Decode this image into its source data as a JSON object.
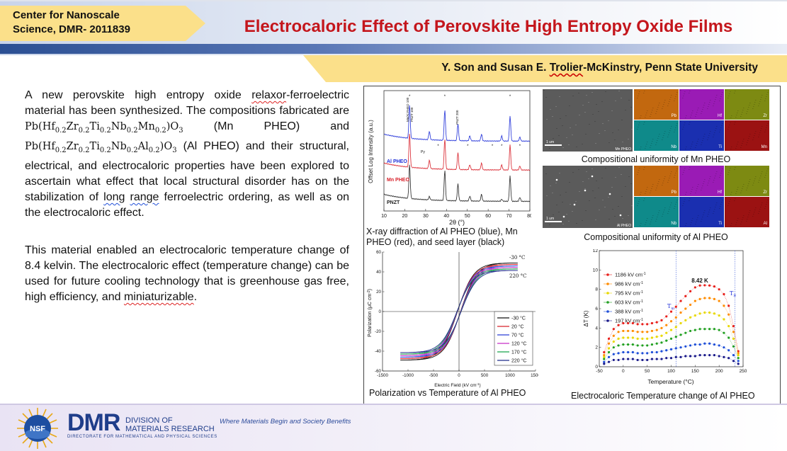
{
  "header": {
    "center_line1": "Center for Nanoscale",
    "center_line2": "Science, DMR- 2011839",
    "title": "Electrocaloric Effect of Perovskite High Entropy Oxide Films",
    "authors_prefix": "Y. Son and Susan E. ",
    "authors_underlined": "Trolier",
    "authors_suffix": "-McKinstry, Penn State University"
  },
  "body": {
    "p1_a": "A new perovskite high entropy oxide ",
    "p1_relaxor": "relaxor",
    "p1_b": "-ferroelectric material has been synthesized. The compositions fabricated are ",
    "p1_c": " (Mn PHEO) and ",
    "p1_d": " (Al PHEO) and their structural, electrical, and electrocaloric properties have been explored to ascertain what effect that local structural disorder has on the stabilization of ",
    "p1_long": "long",
    "p1_space": " ",
    "p1_range": "range",
    "p1_e": " ferroelectric ordering, as well as on the electrocaloric effect.",
    "p2_a": "This material enabled an electrocaloric temperature change of 8.4 kelvin. The electrocaloric effect (temperature change) can be used for future cooling technology that is greenhouse gas free, high efficiency, and ",
    "p2_mini": "miniaturizable",
    "p2_b": ".",
    "formula_mn": {
      "pb": "Pb(Hf",
      "s1": "0.2",
      "zr": "Zr",
      "s2": "0.2",
      "ti": "Ti",
      "s3": "0.2",
      "nb": "Nb",
      "s4": "0.2",
      "m": "Mn",
      "s5": "0.2",
      "o": ")O",
      "s6": "3"
    },
    "formula_al": {
      "pb": "Pb(Hf",
      "s1": "0.2",
      "zr": "Zr",
      "s2": "0.2",
      "ti": "Ti",
      "s3": "0.2",
      "nb": "Nb",
      "s4": "0.2",
      "m": "Al",
      "s5": "0.2",
      "o": ")O",
      "s6": "3"
    }
  },
  "captions": {
    "xrd": "X-ray diffraction of Al PHEO (blue), Mn PHEO (red), and seed layer (black)",
    "mn_map": "Compositional uniformity of Mn PHEO",
    "al_map": "Compositional uniformity of Al PHEO",
    "pe": "Polarization vs Temperature of Al PHEO",
    "ec": "Electrocaloric Temperature change of Al PHEO"
  },
  "em_maps": {
    "scale": "1 um",
    "mn_label": "Mn PHEO",
    "al_label": "Al PHEO",
    "elements_mn": [
      "Pb",
      "Hf",
      "Zr",
      "Nb",
      "Ti",
      "Mn"
    ],
    "elements_al": [
      "Pb",
      "Hf",
      "Zr",
      "Nb",
      "Ti",
      "Al"
    ],
    "colors": [
      "#c2680f",
      "#9a1bb5",
      "#7d8a12",
      "#0f8a8a",
      "#1a2fb0",
      "#9b1212"
    ]
  },
  "footer": {
    "nsf": "NSF",
    "dmr": "DMR",
    "dmr_line1": "DIVISION OF",
    "dmr_line2": "MATERIALS RESEARCH",
    "dmr_sub": "DIRECTORATE FOR MATHEMATICAL AND PHYSICAL SCIENCES",
    "tagline": "Where Materials Begin and Society Benefits"
  },
  "chart_data": [
    {
      "type": "line",
      "ylabel": "Offset Log Intensity (a.u.)",
      "xlabel": "2θ (°)",
      "xlim": [
        10,
        80
      ],
      "xticks": [
        10,
        20,
        30,
        40,
        50,
        60,
        70,
        80
      ],
      "series": [
        {
          "name": "Al PHEO",
          "color": "#1f2fd8",
          "offset": 0.58
        },
        {
          "name": "Mn PHEO",
          "color": "#d8202a",
          "offset": 0.34
        },
        {
          "name": "PNZT",
          "color": "#222222",
          "offset": 0.08
        }
      ],
      "peaks": [
        22.3,
        31.8,
        39.2,
        45.5,
        51.2,
        56.8,
        66.5,
        70.5,
        75.2
      ],
      "annotations": [
        "Mn/Al PHEO 100",
        "PNZT 100",
        "PNZT 200",
        "Py",
        "*"
      ]
    },
    {
      "type": "line",
      "xlabel": "Electric Field (kV cm",
      "xlabel_sup": "-1",
      "xlabel_end": ")",
      "ylabel": "Polarization (μC cm",
      "ylabel_sup": "-2",
      "ylabel_end": ")",
      "xlim": [
        -1500,
        1500
      ],
      "ylim": [
        -60,
        60
      ],
      "xticks": [
        -1500,
        -1000,
        -500,
        0,
        500,
        1000,
        1500
      ],
      "yticks": [
        -60,
        -40,
        -20,
        0,
        20,
        40,
        60
      ],
      "annot_top": "-30 °C",
      "annot_bottom": "220 °C",
      "series": [
        {
          "name": "-30 °C",
          "color": "#111111",
          "pmax": 49
        },
        {
          "name": "20 °C",
          "color": "#d8202a",
          "pmax": 47.5
        },
        {
          "name": "70 °C",
          "color": "#2a3fd8",
          "pmax": 46
        },
        {
          "name": "120 °C",
          "color": "#c82fc8",
          "pmax": 44.5
        },
        {
          "name": "170 °C",
          "color": "#17a34a",
          "pmax": 43
        },
        {
          "name": "220 °C",
          "color": "#1d2a8a",
          "pmax": 41.5
        }
      ]
    },
    {
      "type": "scatter",
      "xlabel": "Temperature (°C)",
      "ylabel": "ΔT (K)",
      "xlim": [
        -50,
        250
      ],
      "ylim": [
        0,
        12
      ],
      "xticks": [
        -50,
        0,
        50,
        100,
        150,
        200,
        250
      ],
      "yticks": [
        0,
        2,
        4,
        6,
        8,
        10,
        12
      ],
      "peak_label": "8.42 K",
      "tm": "T",
      "tm_sub": "m",
      "tb": "T",
      "tb_sub": "B",
      "unit": "kV cm",
      "unit_sup": "-1",
      "x": [
        -40,
        -30,
        -20,
        -10,
        0,
        10,
        20,
        30,
        40,
        50,
        60,
        70,
        80,
        90,
        100,
        110,
        120,
        130,
        140,
        150,
        160,
        170,
        180,
        190,
        200,
        210,
        220,
        230,
        240
      ],
      "series": [
        {
          "field": "1186",
          "color": "#e8201c",
          "values": [
            1.5,
            2.9,
            3.9,
            4.3,
            4.5,
            4.5,
            4.5,
            4.4,
            4.4,
            4.4,
            4.5,
            4.6,
            4.8,
            5.2,
            5.7,
            6.2,
            6.8,
            7.3,
            7.8,
            8.2,
            8.4,
            8.42,
            8.4,
            8.3,
            8.0,
            7.5,
            6.3,
            4.2,
            1.6
          ]
        },
        {
          "field": "986",
          "color": "#ff8c00",
          "values": [
            1.2,
            2.4,
            3.2,
            3.6,
            3.7,
            3.7,
            3.7,
            3.6,
            3.6,
            3.6,
            3.7,
            3.8,
            4.0,
            4.3,
            4.7,
            5.1,
            5.6,
            6.0,
            6.4,
            6.8,
            7.0,
            7.1,
            7.1,
            7.0,
            6.8,
            6.3,
            5.4,
            3.6,
            1.4
          ]
        },
        {
          "field": "795",
          "color": "#e8d800",
          "values": [
            1.0,
            1.9,
            2.6,
            2.9,
            3.0,
            3.0,
            3.0,
            2.9,
            2.9,
            2.9,
            3.0,
            3.1,
            3.2,
            3.5,
            3.8,
            4.1,
            4.5,
            4.8,
            5.1,
            5.3,
            5.5,
            5.6,
            5.6,
            5.5,
            5.3,
            4.9,
            4.2,
            2.9,
            1.2
          ]
        },
        {
          "field": "603",
          "color": "#22a022",
          "values": [
            0.8,
            1.5,
            2.0,
            2.2,
            2.3,
            2.3,
            2.3,
            2.2,
            2.2,
            2.2,
            2.3,
            2.4,
            2.5,
            2.7,
            2.9,
            3.1,
            3.3,
            3.5,
            3.7,
            3.8,
            3.9,
            3.9,
            3.9,
            3.9,
            3.8,
            3.5,
            3.0,
            2.1,
            0.9
          ]
        },
        {
          "field": "388",
          "color": "#1f4fd8",
          "values": [
            0.5,
            1.0,
            1.3,
            1.4,
            1.5,
            1.5,
            1.5,
            1.4,
            1.4,
            1.4,
            1.5,
            1.5,
            1.6,
            1.7,
            1.8,
            1.9,
            2.0,
            2.1,
            2.2,
            2.3,
            2.3,
            2.4,
            2.4,
            2.3,
            2.2,
            2.0,
            1.7,
            1.2,
            0.6
          ]
        },
        {
          "field": "197",
          "color": "#1a1a8a",
          "values": [
            0.3,
            0.5,
            0.7,
            0.7,
            0.8,
            0.8,
            0.8,
            0.7,
            0.7,
            0.7,
            0.8,
            0.8,
            0.8,
            0.9,
            0.9,
            1.0,
            1.0,
            1.1,
            1.1,
            1.1,
            1.2,
            1.2,
            1.2,
            1.2,
            1.1,
            1.0,
            0.9,
            0.6,
            0.3
          ]
        }
      ]
    }
  ]
}
